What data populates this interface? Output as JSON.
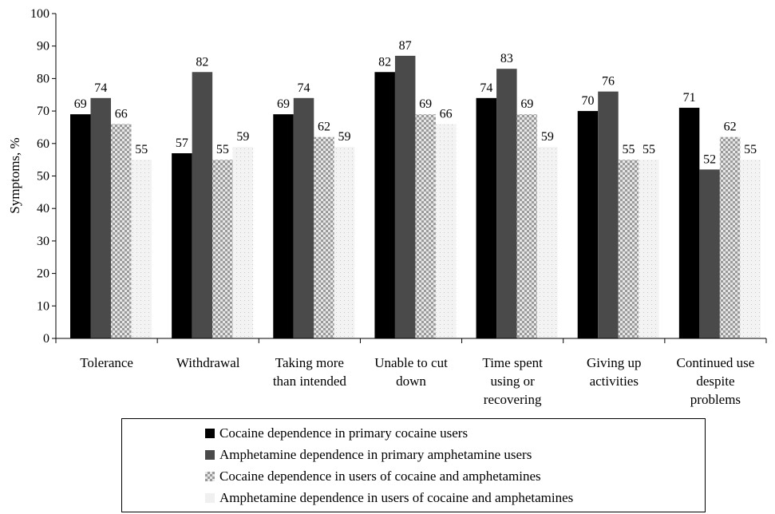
{
  "chart_data": {
    "type": "bar",
    "ylabel": "Symptoms, %",
    "ylim": [
      0,
      100
    ],
    "yticks": [
      0,
      10,
      20,
      30,
      40,
      50,
      60,
      70,
      80,
      90,
      100
    ],
    "grid": false,
    "legend_placement": "bottom",
    "categories": [
      [
        "Tolerance"
      ],
      [
        "Withdrawal"
      ],
      [
        "Taking more",
        "than intended"
      ],
      [
        "Unable to cut",
        "down"
      ],
      [
        "Time spent",
        "using or",
        "recovering"
      ],
      [
        "Giving up",
        "activities"
      ],
      [
        "Continued use",
        "despite",
        "problems"
      ]
    ],
    "series": [
      {
        "name": "Cocaine dependence in primary cocaine users",
        "values": [
          69,
          57,
          69,
          82,
          74,
          70,
          71
        ],
        "color": "#000000",
        "pattern": "solid"
      },
      {
        "name": "Amphetamine dependence in primary amphetamine users",
        "values": [
          74,
          82,
          74,
          87,
          83,
          76,
          52
        ],
        "color": "#4a4a4a",
        "pattern": "solid"
      },
      {
        "name": "Cocaine dependence in users of cocaine and amphetamines",
        "values": [
          66,
          55,
          62,
          69,
          69,
          55,
          62
        ],
        "color": "#bdbdbd",
        "pattern": "checker"
      },
      {
        "name": "Amphetamine dependence in users of cocaine and amphetamines",
        "values": [
          55,
          59,
          59,
          66,
          59,
          55,
          55
        ],
        "color": "#eeeeee",
        "pattern": "dots"
      }
    ]
  }
}
